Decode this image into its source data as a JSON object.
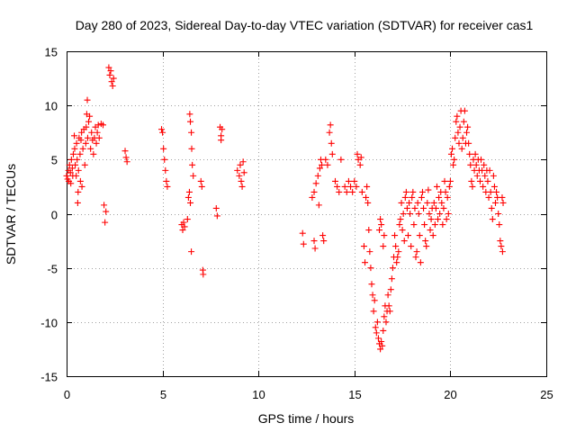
{
  "chart_data": {
    "type": "scatter",
    "title": "Day 280 of 2023, Sidereal Day-to-day VTEC variation (SDTVAR) for receiver cas1",
    "xlabel": "GPS time / hours",
    "ylabel": "SDTVAR / TECUs",
    "xlim": [
      0,
      25
    ],
    "ylim": [
      -15,
      15
    ],
    "xticks": [
      "0",
      "5",
      "10",
      "15",
      "20",
      "25"
    ],
    "yticks": [
      "15",
      "10",
      "5",
      "0",
      "-5",
      "-10",
      "-15"
    ],
    "xtick_values": [
      0,
      5,
      10,
      15,
      20,
      25
    ],
    "ytick_values": [
      15,
      10,
      5,
      0,
      -5,
      -10,
      -15
    ],
    "grid": true,
    "marker": "+",
    "color": "#ff0000",
    "series": [
      {
        "name": "SDTVAR",
        "points": [
          [
            0.0,
            3.5
          ],
          [
            0.05,
            3.2
          ],
          [
            0.1,
            4.0
          ],
          [
            0.12,
            3.0
          ],
          [
            0.15,
            4.5
          ],
          [
            0.2,
            3.8
          ],
          [
            0.22,
            2.8
          ],
          [
            0.25,
            5.0
          ],
          [
            0.3,
            4.2
          ],
          [
            0.32,
            3.5
          ],
          [
            0.35,
            5.5
          ],
          [
            0.4,
            7.2
          ],
          [
            0.42,
            6.0
          ],
          [
            0.45,
            4.5
          ],
          [
            0.5,
            3.5
          ],
          [
            0.52,
            6.5
          ],
          [
            0.55,
            5.0
          ],
          [
            0.58,
            1.0
          ],
          [
            0.6,
            2.0
          ],
          [
            0.62,
            4.0
          ],
          [
            0.65,
            7.0
          ],
          [
            0.7,
            5.5
          ],
          [
            0.72,
            3.0
          ],
          [
            0.75,
            6.8
          ],
          [
            0.78,
            7.5
          ],
          [
            0.8,
            2.5
          ],
          [
            0.85,
            6.0
          ],
          [
            0.9,
            7.8
          ],
          [
            0.95,
            4.5
          ],
          [
            1.0,
            6.5
          ],
          [
            1.02,
            8.0
          ],
          [
            1.05,
            9.2
          ],
          [
            1.08,
            10.5
          ],
          [
            1.1,
            7.0
          ],
          [
            1.15,
            8.5
          ],
          [
            1.2,
            9.0
          ],
          [
            1.25,
            6.0
          ],
          [
            1.3,
            7.5
          ],
          [
            1.35,
            6.8
          ],
          [
            1.4,
            5.5
          ],
          [
            1.45,
            7.0
          ],
          [
            1.5,
            8.0
          ],
          [
            1.55,
            6.5
          ],
          [
            1.6,
            7.5
          ],
          [
            1.65,
            8.2
          ],
          [
            1.7,
            7.0
          ],
          [
            1.8,
            8.3
          ],
          [
            1.9,
            8.2
          ],
          [
            1.95,
            0.8
          ],
          [
            2.0,
            -0.8
          ],
          [
            2.05,
            0.2
          ],
          [
            2.2,
            13.5
          ],
          [
            2.25,
            12.8
          ],
          [
            2.3,
            13.2
          ],
          [
            2.35,
            12.2
          ],
          [
            2.4,
            11.8
          ],
          [
            2.45,
            12.5
          ],
          [
            3.05,
            5.8
          ],
          [
            3.1,
            5.2
          ],
          [
            3.15,
            4.8
          ],
          [
            4.95,
            7.8
          ],
          [
            5.0,
            7.5
          ],
          [
            5.05,
            6.0
          ],
          [
            5.1,
            5.0
          ],
          [
            5.15,
            4.0
          ],
          [
            5.2,
            3.0
          ],
          [
            5.25,
            2.5
          ],
          [
            6.0,
            -1.0
          ],
          [
            6.05,
            -1.5
          ],
          [
            6.1,
            -0.8
          ],
          [
            6.15,
            -1.2
          ],
          [
            6.3,
            -0.5
          ],
          [
            6.35,
            1.5
          ],
          [
            6.4,
            2.0
          ],
          [
            6.45,
            1.0
          ],
          [
            6.5,
            -3.5
          ],
          [
            6.42,
            9.2
          ],
          [
            6.45,
            8.5
          ],
          [
            6.5,
            7.5
          ],
          [
            6.52,
            6.0
          ],
          [
            6.55,
            4.5
          ],
          [
            6.6,
            3.5
          ],
          [
            7.0,
            3.0
          ],
          [
            7.05,
            2.5
          ],
          [
            7.1,
            -5.2
          ],
          [
            7.12,
            -5.6
          ],
          [
            7.8,
            0.5
          ],
          [
            7.85,
            -0.2
          ],
          [
            8.0,
            8.0
          ],
          [
            8.05,
            7.2
          ],
          [
            8.1,
            7.8
          ],
          [
            8.05,
            6.8
          ],
          [
            8.9,
            4.0
          ],
          [
            9.0,
            3.5
          ],
          [
            9.05,
            4.5
          ],
          [
            9.1,
            3.0
          ],
          [
            9.15,
            2.5
          ],
          [
            9.2,
            4.8
          ],
          [
            9.25,
            3.8
          ],
          [
            12.3,
            -1.8
          ],
          [
            12.35,
            -2.8
          ],
          [
            12.9,
            -2.5
          ],
          [
            12.95,
            -3.2
          ],
          [
            12.8,
            1.5
          ],
          [
            12.9,
            2.0
          ],
          [
            13.0,
            2.8
          ],
          [
            13.1,
            3.5
          ],
          [
            13.15,
            0.8
          ],
          [
            13.2,
            4.2
          ],
          [
            13.25,
            5.0
          ],
          [
            13.3,
            4.5
          ],
          [
            13.35,
            -2.0
          ],
          [
            13.4,
            -2.5
          ],
          [
            13.5,
            5.0
          ],
          [
            13.6,
            4.5
          ],
          [
            13.7,
            7.5
          ],
          [
            13.75,
            8.2
          ],
          [
            13.8,
            6.5
          ],
          [
            13.85,
            5.5
          ],
          [
            14.0,
            3.0
          ],
          [
            14.1,
            2.5
          ],
          [
            14.2,
            2.0
          ],
          [
            14.3,
            5.0
          ],
          [
            14.5,
            2.5
          ],
          [
            14.6,
            2.0
          ],
          [
            14.7,
            3.0
          ],
          [
            14.8,
            2.5
          ],
          [
            14.9,
            2.0
          ],
          [
            15.0,
            3.0
          ],
          [
            15.1,
            2.5
          ],
          [
            15.15,
            5.5
          ],
          [
            15.2,
            5.0
          ],
          [
            15.3,
            4.5
          ],
          [
            15.35,
            5.2
          ],
          [
            15.4,
            2.0
          ],
          [
            15.5,
            -3.0
          ],
          [
            15.55,
            -4.5
          ],
          [
            15.6,
            1.5
          ],
          [
            15.65,
            2.5
          ],
          [
            15.7,
            1.0
          ],
          [
            15.75,
            -1.5
          ],
          [
            15.8,
            -3.5
          ],
          [
            15.85,
            -5.0
          ],
          [
            15.9,
            -6.5
          ],
          [
            15.95,
            -7.5
          ],
          [
            16.0,
            -9.0
          ],
          [
            16.05,
            -8.0
          ],
          [
            16.1,
            -10.5
          ],
          [
            16.15,
            -11.0
          ],
          [
            16.2,
            -10.0
          ],
          [
            16.25,
            -11.5
          ],
          [
            16.3,
            -12.0
          ],
          [
            16.35,
            -12.5
          ],
          [
            16.4,
            -11.8
          ],
          [
            16.45,
            -12.2
          ],
          [
            16.5,
            -10.8
          ],
          [
            16.55,
            -9.5
          ],
          [
            16.6,
            -8.5
          ],
          [
            16.65,
            -10.0
          ],
          [
            16.7,
            -9.0
          ],
          [
            16.75,
            -7.5
          ],
          [
            16.8,
            -8.5
          ],
          [
            16.85,
            -9.0
          ],
          [
            16.9,
            -7.0
          ],
          [
            16.95,
            -6.0
          ],
          [
            17.0,
            -5.0
          ],
          [
            17.05,
            -4.0
          ],
          [
            17.1,
            -2.0
          ],
          [
            17.15,
            -3.0
          ],
          [
            17.2,
            -4.5
          ],
          [
            17.25,
            -4.0
          ],
          [
            17.3,
            -3.5
          ],
          [
            17.35,
            -1.0
          ],
          [
            16.3,
            -1.5
          ],
          [
            16.35,
            -0.5
          ],
          [
            16.4,
            -1.0
          ],
          [
            16.5,
            -3.0
          ],
          [
            16.55,
            -2.0
          ],
          [
            17.4,
            -0.5
          ],
          [
            17.45,
            1.0
          ],
          [
            17.5,
            -1.5
          ],
          [
            17.55,
            0.0
          ],
          [
            17.6,
            -2.5
          ],
          [
            17.65,
            1.5
          ],
          [
            17.7,
            2.0
          ],
          [
            17.75,
            0.5
          ],
          [
            17.8,
            -2.0
          ],
          [
            17.85,
            1.0
          ],
          [
            17.9,
            0.0
          ],
          [
            17.95,
            -3.0
          ],
          [
            18.0,
            1.5
          ],
          [
            18.05,
            2.0
          ],
          [
            18.1,
            -1.0
          ],
          [
            18.15,
            0.5
          ],
          [
            18.2,
            -4.0
          ],
          [
            18.25,
            -3.5
          ],
          [
            18.3,
            1.0
          ],
          [
            18.35,
            0.0
          ],
          [
            18.4,
            -2.0
          ],
          [
            18.45,
            -4.5
          ],
          [
            18.5,
            1.5
          ],
          [
            18.55,
            2.0
          ],
          [
            18.6,
            0.5
          ],
          [
            18.65,
            -1.0
          ],
          [
            18.7,
            -2.5
          ],
          [
            18.75,
            -3.0
          ],
          [
            18.8,
            1.0
          ],
          [
            18.85,
            2.2
          ],
          [
            18.9,
            0.0
          ],
          [
            18.95,
            -1.5
          ],
          [
            19.0,
            -0.5
          ],
          [
            19.05,
            0.5
          ],
          [
            19.1,
            -2.0
          ],
          [
            19.15,
            1.0
          ],
          [
            19.2,
            -1.0
          ],
          [
            19.25,
            0.5
          ],
          [
            19.3,
            2.5
          ],
          [
            19.35,
            -0.5
          ],
          [
            19.4,
            1.5
          ],
          [
            19.45,
            0.0
          ],
          [
            19.5,
            2.0
          ],
          [
            19.55,
            1.0
          ],
          [
            19.6,
            -1.0
          ],
          [
            19.65,
            0.5
          ],
          [
            19.7,
            3.0
          ],
          [
            19.75,
            2.0
          ],
          [
            19.8,
            -0.5
          ],
          [
            19.85,
            1.5
          ],
          [
            19.9,
            0.0
          ],
          [
            19.95,
            2.5
          ],
          [
            20.0,
            3.0
          ],
          [
            20.05,
            5.5
          ],
          [
            20.1,
            6.0
          ],
          [
            20.15,
            4.5
          ],
          [
            20.2,
            5.0
          ],
          [
            20.25,
            7.0
          ],
          [
            20.3,
            8.5
          ],
          [
            20.35,
            9.0
          ],
          [
            20.4,
            7.5
          ],
          [
            20.45,
            6.5
          ],
          [
            20.5,
            8.0
          ],
          [
            20.55,
            9.5
          ],
          [
            20.6,
            6.0
          ],
          [
            20.65,
            7.0
          ],
          [
            20.7,
            8.5
          ],
          [
            20.75,
            9.5
          ],
          [
            20.8,
            6.5
          ],
          [
            20.85,
            7.5
          ],
          [
            20.9,
            8.0
          ],
          [
            20.95,
            6.5
          ],
          [
            21.0,
            5.5
          ],
          [
            21.05,
            4.5
          ],
          [
            21.1,
            3.0
          ],
          [
            21.15,
            2.5
          ],
          [
            21.2,
            5.0
          ],
          [
            21.25,
            4.0
          ],
          [
            21.3,
            5.5
          ],
          [
            21.35,
            4.5
          ],
          [
            21.4,
            3.5
          ],
          [
            21.45,
            5.0
          ],
          [
            21.5,
            4.0
          ],
          [
            21.55,
            3.0
          ],
          [
            21.6,
            5.0
          ],
          [
            21.65,
            4.0
          ],
          [
            21.7,
            2.5
          ],
          [
            21.75,
            4.5
          ],
          [
            21.8,
            3.5
          ],
          [
            21.85,
            2.0
          ],
          [
            21.9,
            4.0
          ],
          [
            21.95,
            3.0
          ],
          [
            22.0,
            1.5
          ],
          [
            22.05,
            4.0
          ],
          [
            22.1,
            2.0
          ],
          [
            22.15,
            0.5
          ],
          [
            22.2,
            -0.5
          ],
          [
            22.25,
            3.5
          ],
          [
            22.3,
            2.5
          ],
          [
            22.35,
            1.0
          ],
          [
            22.4,
            2.0
          ],
          [
            22.45,
            1.5
          ],
          [
            22.5,
            0.0
          ],
          [
            22.55,
            -1.0
          ],
          [
            22.6,
            -2.5
          ],
          [
            22.65,
            -3.0
          ],
          [
            22.7,
            1.5
          ],
          [
            22.72,
            -3.5
          ],
          [
            22.75,
            1.0
          ]
        ]
      }
    ]
  }
}
